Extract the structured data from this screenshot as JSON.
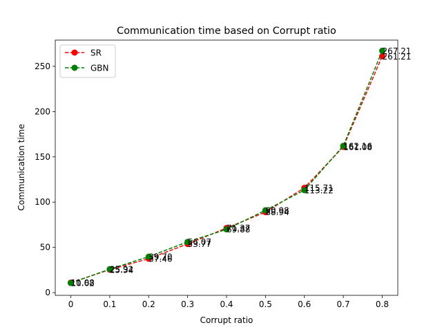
{
  "chart_data": {
    "type": "line",
    "title": "Communication time based on Corrupt ratio",
    "xlabel": "Corrupt ratio",
    "ylabel": "Communication time",
    "xlim": [
      -0.04,
      0.84
    ],
    "ylim": [
      -3,
      279
    ],
    "x": [
      0,
      0.1,
      0.2,
      0.3,
      0.4,
      0.5,
      0.6,
      0.7,
      0.8
    ],
    "xticks": [
      0,
      0.1,
      0.2,
      0.3,
      0.4,
      0.5,
      0.6,
      0.7,
      0.8
    ],
    "xtick_labels": [
      "0",
      "0.1",
      "0.2",
      "0.3",
      "0.4",
      "0.5",
      "0.6",
      "0.7",
      "0.8"
    ],
    "yticks": [
      0,
      50,
      100,
      150,
      200,
      250
    ],
    "ytick_labels": [
      "0",
      "50",
      "100",
      "150",
      "200",
      "250"
    ],
    "legend": "top-left",
    "grid": false,
    "series": [
      {
        "name": "SR",
        "color": "#ff0000",
        "values": [
          11.08,
          25.34,
          37.46,
          53.77,
          71.37,
          88.94,
          115.71,
          161.08,
          261.21
        ],
        "labels": [
          "11.08",
          "25.34",
          "37.46",
          "53.77",
          "71.37",
          "88.94",
          "115.71",
          "161.08",
          "261.21"
        ]
      },
      {
        "name": "GBN",
        "color": "#008000",
        "values": [
          10.62,
          25.92,
          39.7,
          56.07,
          69.88,
          90.98,
          113.22,
          162.16,
          267.21
        ],
        "labels": [
          "10.62",
          "25.92",
          "39.70",
          "56.07",
          "69.88",
          "90.98",
          "113.22",
          "162.16",
          "267.21"
        ]
      }
    ]
  }
}
